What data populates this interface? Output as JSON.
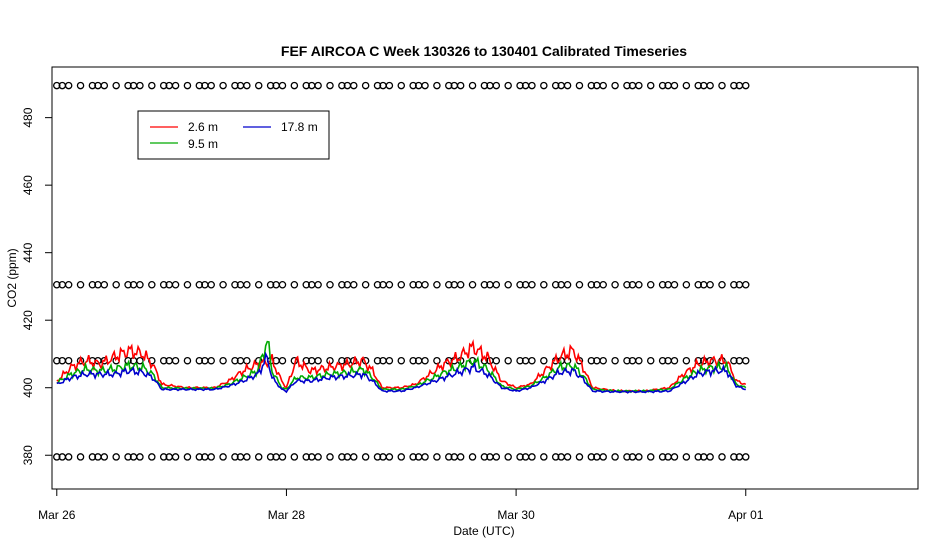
{
  "chart_data": {
    "type": "line",
    "title": "FEF AIRCOA C  Week 130326 to 130401  Calibrated Timeseries",
    "xlabel": "Date (UTC)",
    "ylabel": "CO2 (ppm)",
    "xlim": [
      "2013-03-25T23:00",
      "2013-04-02T12:00"
    ],
    "ylim": [
      370,
      495
    ],
    "x_ticks": [
      {
        "date": "2013-03-26",
        "label": "Mar 26"
      },
      {
        "date": "2013-03-28",
        "label": "Mar 28"
      },
      {
        "date": "2013-03-30",
        "label": "Mar 30"
      },
      {
        "date": "2013-04-01",
        "label": "Apr 01"
      }
    ],
    "y_ticks": [
      380,
      400,
      420,
      440,
      460,
      480
    ],
    "grid": false,
    "legend": {
      "position": "top-left",
      "entries": [
        {
          "label": "2.6 m",
          "color": "#ff0000"
        },
        {
          "label": "17.8 m",
          "color": "#0000cc"
        },
        {
          "label": "9.5 m",
          "color": "#00aa00"
        }
      ]
    },
    "series": [
      {
        "name": "2.6 m",
        "color": "#ff0000",
        "points": [
          [
            "2013-03-26T00:00",
            402
          ],
          [
            "2013-03-26T03:00",
            406
          ],
          [
            "2013-03-26T06:00",
            408
          ],
          [
            "2013-03-26T09:00",
            407
          ],
          [
            "2013-03-26T12:00",
            409
          ],
          [
            "2013-03-26T15:00",
            411
          ],
          [
            "2013-03-26T18:00",
            410
          ],
          [
            "2013-03-26T20:00",
            407
          ],
          [
            "2013-03-26T22:00",
            401
          ],
          [
            "2013-03-27T03:00",
            400
          ],
          [
            "2013-03-27T09:00",
            400
          ],
          [
            "2013-03-27T12:00",
            402
          ],
          [
            "2013-03-27T15:00",
            405
          ],
          [
            "2013-03-27T18:00",
            407
          ],
          [
            "2013-03-27T21:00",
            408
          ],
          [
            "2013-03-27T23:00",
            402
          ],
          [
            "2013-03-28T00:00",
            400
          ],
          [
            "2013-03-28T02:00",
            408
          ],
          [
            "2013-03-28T05:00",
            405
          ],
          [
            "2013-03-28T09:00",
            406
          ],
          [
            "2013-03-28T13:00",
            407
          ],
          [
            "2013-03-28T16:00",
            408
          ],
          [
            "2013-03-28T18:00",
            405
          ],
          [
            "2013-03-28T20:00",
            400
          ],
          [
            "2013-03-29T00:00",
            400
          ],
          [
            "2013-03-29T03:00",
            401
          ],
          [
            "2013-03-29T06:00",
            404
          ],
          [
            "2013-03-29T09:00",
            407
          ],
          [
            "2013-03-29T12:00",
            409
          ],
          [
            "2013-03-29T15:00",
            412
          ],
          [
            "2013-03-29T18:00",
            409
          ],
          [
            "2013-03-29T21:00",
            402
          ],
          [
            "2013-03-30T00:00",
            400
          ],
          [
            "2013-03-30T03:00",
            401
          ],
          [
            "2013-03-30T06:00",
            405
          ],
          [
            "2013-03-30T09:00",
            409
          ],
          [
            "2013-03-30T12:00",
            411
          ],
          [
            "2013-03-30T14:00",
            406
          ],
          [
            "2013-03-30T16:00",
            400
          ],
          [
            "2013-03-30T21:00",
            399
          ],
          [
            "2013-03-31T03:00",
            399
          ],
          [
            "2013-03-31T08:00",
            400
          ],
          [
            "2013-03-31T11:00",
            404
          ],
          [
            "2013-03-31T14:00",
            407
          ],
          [
            "2013-03-31T17:00",
            408
          ],
          [
            "2013-03-31T20:00",
            408
          ],
          [
            "2013-03-31T22:00",
            402
          ],
          [
            "2013-04-01T00:00",
            401
          ]
        ]
      },
      {
        "name": "9.5 m",
        "color": "#00aa00",
        "points": [
          [
            "2013-03-26T00:00",
            401.5
          ],
          [
            "2013-03-26T03:00",
            404
          ],
          [
            "2013-03-26T06:00",
            405.5
          ],
          [
            "2013-03-26T09:00",
            405
          ],
          [
            "2013-03-26T12:00",
            405.5
          ],
          [
            "2013-03-26T15:00",
            406.5
          ],
          [
            "2013-03-26T18:00",
            406
          ],
          [
            "2013-03-26T20:00",
            404
          ],
          [
            "2013-03-26T22:00",
            400
          ],
          [
            "2013-03-27T03:00",
            399.8
          ],
          [
            "2013-03-27T09:00",
            399.8
          ],
          [
            "2013-03-27T12:00",
            401
          ],
          [
            "2013-03-27T15:00",
            403
          ],
          [
            "2013-03-27T18:00",
            405
          ],
          [
            "2013-03-27T20:00",
            414
          ],
          [
            "2013-03-27T21:00",
            405
          ],
          [
            "2013-03-27T23:00",
            400
          ],
          [
            "2013-03-28T00:00",
            399.5
          ],
          [
            "2013-03-28T02:00",
            403
          ],
          [
            "2013-03-28T05:00",
            403
          ],
          [
            "2013-03-28T09:00",
            404
          ],
          [
            "2013-03-28T13:00",
            404.5
          ],
          [
            "2013-03-28T16:00",
            405.5
          ],
          [
            "2013-03-28T18:00",
            403
          ],
          [
            "2013-03-28T20:00",
            399.5
          ],
          [
            "2013-03-29T00:00",
            399.5
          ],
          [
            "2013-03-29T03:00",
            400.5
          ],
          [
            "2013-03-29T06:00",
            402.5
          ],
          [
            "2013-03-29T09:00",
            404.5
          ],
          [
            "2013-03-29T12:00",
            406
          ],
          [
            "2013-03-29T15:00",
            408
          ],
          [
            "2013-03-29T18:00",
            405.5
          ],
          [
            "2013-03-29T21:00",
            400.5
          ],
          [
            "2013-03-30T00:00",
            399.5
          ],
          [
            "2013-03-30T03:00",
            400.5
          ],
          [
            "2013-03-30T06:00",
            403
          ],
          [
            "2013-03-30T09:00",
            406
          ],
          [
            "2013-03-30T12:00",
            406.5
          ],
          [
            "2013-03-30T14:00",
            403.5
          ],
          [
            "2013-03-30T16:00",
            399.5
          ],
          [
            "2013-03-30T21:00",
            399
          ],
          [
            "2013-03-31T03:00",
            399
          ],
          [
            "2013-03-31T08:00",
            399.5
          ],
          [
            "2013-03-31T11:00",
            402.5
          ],
          [
            "2013-03-31T14:00",
            405
          ],
          [
            "2013-03-31T17:00",
            406
          ],
          [
            "2013-03-31T20:00",
            406
          ],
          [
            "2013-03-31T22:00",
            401
          ],
          [
            "2013-04-01T00:00",
            400
          ]
        ]
      },
      {
        "name": "17.8 m",
        "color": "#0000cc",
        "points": [
          [
            "2013-03-26T00:00",
            401
          ],
          [
            "2013-03-26T03:00",
            403
          ],
          [
            "2013-03-26T06:00",
            404
          ],
          [
            "2013-03-26T09:00",
            404
          ],
          [
            "2013-03-26T12:00",
            404
          ],
          [
            "2013-03-26T15:00",
            405
          ],
          [
            "2013-03-26T18:00",
            404.5
          ],
          [
            "2013-03-26T20:00",
            403
          ],
          [
            "2013-03-26T22:00",
            399.5
          ],
          [
            "2013-03-27T03:00",
            399.5
          ],
          [
            "2013-03-27T09:00",
            399.5
          ],
          [
            "2013-03-27T12:00",
            400.5
          ],
          [
            "2013-03-27T15:00",
            402
          ],
          [
            "2013-03-27T18:00",
            404
          ],
          [
            "2013-03-27T20:00",
            409
          ],
          [
            "2013-03-27T21:00",
            403
          ],
          [
            "2013-03-27T23:00",
            399.5
          ],
          [
            "2013-03-28T00:00",
            399
          ],
          [
            "2013-03-28T02:00",
            402
          ],
          [
            "2013-03-28T05:00",
            402
          ],
          [
            "2013-03-28T09:00",
            403
          ],
          [
            "2013-03-28T13:00",
            403.5
          ],
          [
            "2013-03-28T16:00",
            404
          ],
          [
            "2013-03-28T18:00",
            402
          ],
          [
            "2013-03-28T20:00",
            399
          ],
          [
            "2013-03-29T00:00",
            399
          ],
          [
            "2013-03-29T03:00",
            400
          ],
          [
            "2013-03-29T06:00",
            401.5
          ],
          [
            "2013-03-29T09:00",
            403
          ],
          [
            "2013-03-29T12:00",
            404.5
          ],
          [
            "2013-03-29T15:00",
            406
          ],
          [
            "2013-03-29T18:00",
            404
          ],
          [
            "2013-03-29T21:00",
            400
          ],
          [
            "2013-03-30T00:00",
            399
          ],
          [
            "2013-03-30T03:00",
            400
          ],
          [
            "2013-03-30T06:00",
            402
          ],
          [
            "2013-03-30T09:00",
            404.5
          ],
          [
            "2013-03-30T12:00",
            405
          ],
          [
            "2013-03-30T14:00",
            402.5
          ],
          [
            "2013-03-30T16:00",
            399
          ],
          [
            "2013-03-30T21:00",
            398.8
          ],
          [
            "2013-03-31T03:00",
            398.8
          ],
          [
            "2013-03-31T08:00",
            399
          ],
          [
            "2013-03-31T11:00",
            401.5
          ],
          [
            "2013-03-31T14:00",
            404
          ],
          [
            "2013-03-31T17:00",
            405
          ],
          [
            "2013-03-31T20:00",
            405
          ],
          [
            "2013-03-31T22:00",
            400.5
          ],
          [
            "2013-04-01T00:00",
            399.5
          ]
        ]
      },
      {
        "name": "",
        "type": "scatter",
        "marker": "open-circle",
        "color": "#000000",
        "x_start": "2013-03-26T00:00",
        "x_end": "2013-04-01T00:00",
        "y_levels": [
          489.5,
          430.5,
          408,
          379.5
        ]
      }
    ]
  }
}
